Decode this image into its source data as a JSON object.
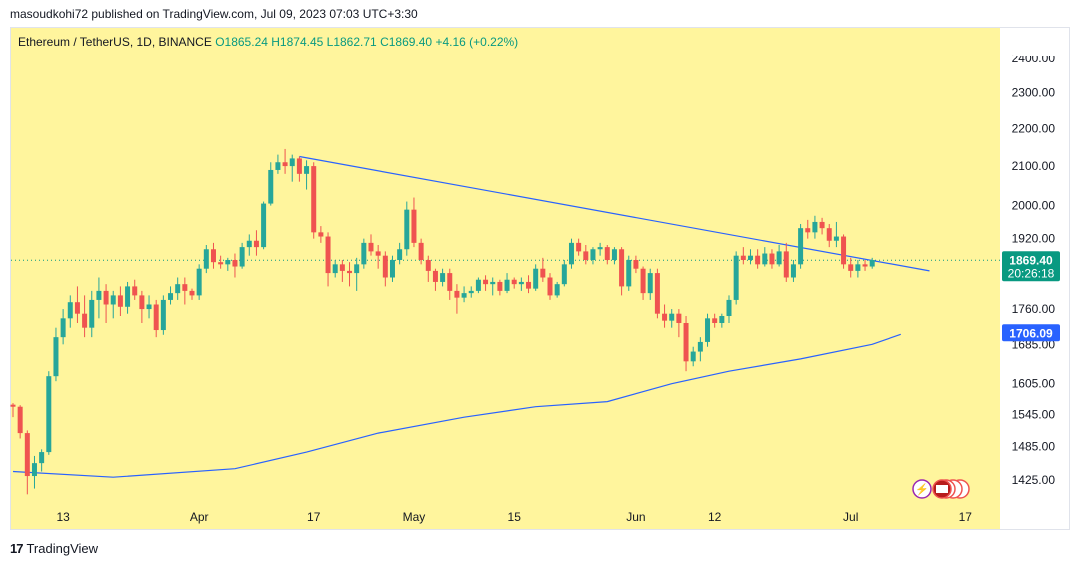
{
  "header": {
    "published": "masoudkohi72 published on TradingView.com, Jul 09, 2023 07:03 UTC+3:30"
  },
  "legend": {
    "symbol": "Ethereum / TetherUS, 1D, BINANCE",
    "open": "O1865.24",
    "high": "H1874.45",
    "low": "L1862.71",
    "close": "C1869.40",
    "change": "+4.16 (+0.22%)"
  },
  "price_label": {
    "price": "1869.40",
    "countdown": "20:26:18"
  },
  "ma_label": "1706.09",
  "footer": {
    "brand": "TradingView"
  },
  "colors": {
    "background": "#fff59d",
    "up": "#26a69a",
    "down": "#ef5350",
    "line": "#2962ff",
    "price_tag": "#089981",
    "ma_tag": "#2962ff"
  },
  "chart_data": {
    "type": "candlestick",
    "title": "Ethereum / TetherUS, 1D, BINANCE",
    "y_ticks": [
      "2400.00",
      "2300.00",
      "2200.00",
      "2100.00",
      "2000.00",
      "1920.00",
      "1760.00",
      "1685.00",
      "1605.00",
      "1545.00",
      "1485.00",
      "1425.00"
    ],
    "x_ticks": [
      "13",
      "Apr",
      "17",
      "May",
      "15",
      "Jun",
      "12",
      "Jul",
      "17"
    ],
    "ylim": [
      1390,
      2440
    ],
    "log_scale": true,
    "candles_start": "2023-03-06",
    "candles": [
      [
        1564,
        1567,
        1540,
        1560
      ],
      [
        1560,
        1563,
        1500,
        1510
      ],
      [
        1510,
        1515,
        1400,
        1432
      ],
      [
        1432,
        1468,
        1410,
        1455
      ],
      [
        1455,
        1480,
        1440,
        1475
      ],
      [
        1475,
        1630,
        1470,
        1620
      ],
      [
        1620,
        1720,
        1610,
        1700
      ],
      [
        1700,
        1760,
        1685,
        1740
      ],
      [
        1740,
        1790,
        1720,
        1775
      ],
      [
        1775,
        1810,
        1730,
        1750
      ],
      [
        1750,
        1790,
        1700,
        1720
      ],
      [
        1720,
        1800,
        1700,
        1780
      ],
      [
        1780,
        1830,
        1740,
        1800
      ],
      [
        1800,
        1815,
        1730,
        1770
      ],
      [
        1770,
        1800,
        1740,
        1790
      ],
      [
        1790,
        1810,
        1745,
        1765
      ],
      [
        1765,
        1820,
        1750,
        1810
      ],
      [
        1810,
        1825,
        1780,
        1790
      ],
      [
        1790,
        1800,
        1730,
        1760
      ],
      [
        1760,
        1790,
        1740,
        1770
      ],
      [
        1770,
        1780,
        1700,
        1715
      ],
      [
        1715,
        1790,
        1705,
        1780
      ],
      [
        1780,
        1810,
        1770,
        1795
      ],
      [
        1795,
        1830,
        1780,
        1815
      ],
      [
        1815,
        1830,
        1770,
        1800
      ],
      [
        1800,
        1805,
        1780,
        1790
      ],
      [
        1790,
        1860,
        1780,
        1850
      ],
      [
        1850,
        1905,
        1840,
        1895
      ],
      [
        1895,
        1910,
        1850,
        1865
      ],
      [
        1865,
        1880,
        1850,
        1860
      ],
      [
        1860,
        1875,
        1845,
        1870
      ],
      [
        1870,
        1885,
        1830,
        1855
      ],
      [
        1855,
        1910,
        1850,
        1900
      ],
      [
        1900,
        1930,
        1880,
        1915
      ],
      [
        1915,
        1940,
        1880,
        1900
      ],
      [
        1900,
        2010,
        1895,
        2005
      ],
      [
        2005,
        2110,
        2000,
        2090
      ],
      [
        2090,
        2130,
        2080,
        2110
      ],
      [
        2110,
        2145,
        2080,
        2100
      ],
      [
        2100,
        2130,
        2060,
        2120
      ],
      [
        2120,
        2125,
        2060,
        2080
      ],
      [
        2080,
        2115,
        2040,
        2100
      ],
      [
        2100,
        2110,
        1920,
        1935
      ],
      [
        1935,
        1950,
        1910,
        1925
      ],
      [
        1925,
        1935,
        1810,
        1840
      ],
      [
        1840,
        1870,
        1830,
        1860
      ],
      [
        1860,
        1870,
        1820,
        1845
      ],
      [
        1845,
        1865,
        1810,
        1840
      ],
      [
        1840,
        1875,
        1800,
        1860
      ],
      [
        1860,
        1920,
        1850,
        1910
      ],
      [
        1910,
        1930,
        1880,
        1890
      ],
      [
        1890,
        1905,
        1850,
        1880
      ],
      [
        1880,
        1890,
        1810,
        1830
      ],
      [
        1830,
        1880,
        1820,
        1870
      ],
      [
        1870,
        1910,
        1860,
        1895
      ],
      [
        1895,
        2010,
        1880,
        1990
      ],
      [
        1990,
        2020,
        1900,
        1910
      ],
      [
        1910,
        1920,
        1860,
        1870
      ],
      [
        1870,
        1880,
        1820,
        1845
      ],
      [
        1845,
        1850,
        1800,
        1820
      ],
      [
        1820,
        1850,
        1810,
        1840
      ],
      [
        1840,
        1850,
        1780,
        1800
      ],
      [
        1800,
        1815,
        1750,
        1785
      ],
      [
        1785,
        1810,
        1775,
        1795
      ],
      [
        1795,
        1810,
        1785,
        1800
      ],
      [
        1800,
        1830,
        1795,
        1825
      ],
      [
        1825,
        1835,
        1800,
        1815
      ],
      [
        1815,
        1830,
        1790,
        1820
      ],
      [
        1820,
        1825,
        1790,
        1800
      ],
      [
        1800,
        1840,
        1795,
        1825
      ],
      [
        1825,
        1830,
        1805,
        1815
      ],
      [
        1815,
        1830,
        1800,
        1820
      ],
      [
        1820,
        1835,
        1795,
        1805
      ],
      [
        1805,
        1860,
        1800,
        1850
      ],
      [
        1850,
        1875,
        1820,
        1830
      ],
      [
        1830,
        1840,
        1780,
        1790
      ],
      [
        1790,
        1820,
        1785,
        1815
      ],
      [
        1815,
        1870,
        1810,
        1860
      ],
      [
        1860,
        1920,
        1850,
        1910
      ],
      [
        1910,
        1920,
        1880,
        1890
      ],
      [
        1890,
        1905,
        1860,
        1870
      ],
      [
        1870,
        1900,
        1860,
        1895
      ],
      [
        1895,
        1910,
        1880,
        1900
      ],
      [
        1900,
        1905,
        1860,
        1870
      ],
      [
        1870,
        1900,
        1860,
        1895
      ],
      [
        1895,
        1900,
        1790,
        1810
      ],
      [
        1810,
        1880,
        1800,
        1870
      ],
      [
        1870,
        1880,
        1840,
        1850
      ],
      [
        1850,
        1855,
        1780,
        1795
      ],
      [
        1795,
        1850,
        1780,
        1840
      ],
      [
        1840,
        1850,
        1740,
        1750
      ],
      [
        1750,
        1770,
        1720,
        1735
      ],
      [
        1735,
        1760,
        1720,
        1750
      ],
      [
        1750,
        1760,
        1700,
        1730
      ],
      [
        1730,
        1745,
        1630,
        1650
      ],
      [
        1650,
        1680,
        1640,
        1670
      ],
      [
        1670,
        1700,
        1650,
        1690
      ],
      [
        1690,
        1750,
        1680,
        1740
      ],
      [
        1740,
        1750,
        1720,
        1730
      ],
      [
        1730,
        1750,
        1720,
        1745
      ],
      [
        1745,
        1790,
        1730,
        1780
      ],
      [
        1780,
        1890,
        1770,
        1880
      ],
      [
        1880,
        1900,
        1860,
        1870
      ],
      [
        1870,
        1895,
        1860,
        1880
      ],
      [
        1880,
        1895,
        1850,
        1860
      ],
      [
        1860,
        1900,
        1855,
        1885
      ],
      [
        1885,
        1895,
        1850,
        1860
      ],
      [
        1860,
        1905,
        1855,
        1890
      ],
      [
        1890,
        1910,
        1820,
        1830
      ],
      [
        1830,
        1870,
        1820,
        1860
      ],
      [
        1860,
        1955,
        1850,
        1945
      ],
      [
        1945,
        1965,
        1920,
        1935
      ],
      [
        1935,
        1975,
        1920,
        1960
      ],
      [
        1960,
        1970,
        1930,
        1945
      ],
      [
        1945,
        1955,
        1900,
        1915
      ],
      [
        1915,
        1960,
        1900,
        1925
      ],
      [
        1925,
        1930,
        1850,
        1860
      ],
      [
        1860,
        1875,
        1830,
        1845
      ],
      [
        1845,
        1870,
        1830,
        1860
      ],
      [
        1860,
        1870,
        1845,
        1855
      ],
      [
        1855,
        1875,
        1850,
        1870
      ]
    ],
    "trendline": {
      "from": [
        "2023-04-15",
        2125
      ],
      "to": [
        "2023-07-12",
        1845
      ]
    },
    "moving_average": [
      [
        "2023-03-06",
        1440
      ],
      [
        "2023-03-20",
        1430
      ],
      [
        "2023-04-06",
        1445
      ],
      [
        "2023-04-16",
        1475
      ],
      [
        "2023-04-26",
        1510
      ],
      [
        "2023-05-08",
        1540
      ],
      [
        "2023-05-18",
        1560
      ],
      [
        "2023-05-28",
        1570
      ],
      [
        "2023-06-06",
        1605
      ],
      [
        "2023-06-14",
        1630
      ],
      [
        "2023-06-24",
        1655
      ],
      [
        "2023-07-04",
        1685
      ],
      [
        "2023-07-08",
        1706
      ]
    ],
    "last_price": 1869.4,
    "ma_value": 1706.09
  }
}
